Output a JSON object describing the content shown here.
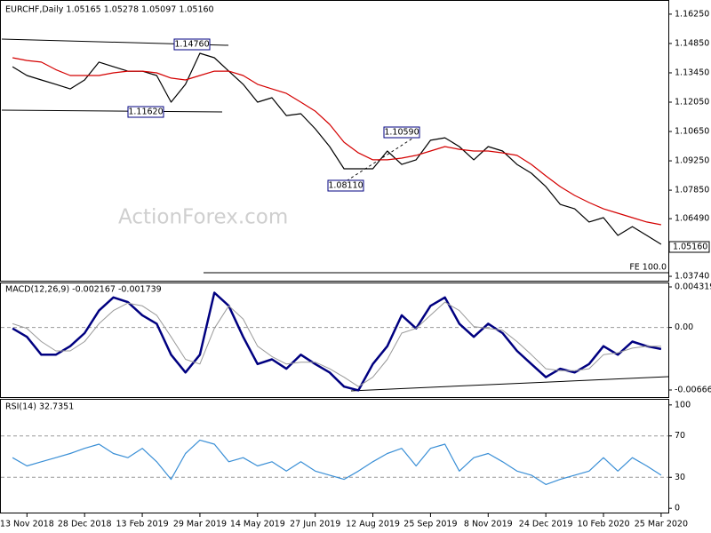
{
  "chart_data": [
    {
      "type": "line",
      "title": "EURCHF,Daily  1.05165 1.05278 1.05097 1.05160",
      "watermark": "ActionForex.com",
      "annotations": [
        "1.14760",
        "1.11620",
        "1.10590",
        "1.08110",
        "FE 100.0"
      ],
      "last_label": "1.05160",
      "categories": [
        null,
        "13 Nov 2018",
        null,
        null,
        null,
        "28 Dec 2018",
        null,
        null,
        null,
        "13 Feb 2019",
        null,
        null,
        null,
        "29 Mar 2019",
        null,
        null,
        null,
        "14 May 2019",
        null,
        null,
        null,
        "27 Jun 2019",
        null,
        null,
        null,
        "12 Aug 2019",
        null,
        null,
        null,
        "25 Sep 2019",
        null,
        null,
        null,
        "8 Nov 2019",
        null,
        null,
        null,
        "24 Dec 2019",
        null,
        null,
        null,
        "10 Feb 2020",
        null,
        null,
        null,
        "25 Mar 2020"
      ],
      "series": [
        {
          "color": "#000000",
          "values": [
            1.1374,
            1.1332,
            1.1311,
            1.129,
            1.1268,
            1.1311,
            1.1396,
            1.1374,
            1.1353,
            1.1353,
            1.1332,
            1.1205,
            1.129,
            1.1438,
            1.1417,
            1.1353,
            1.129,
            1.1205,
            1.1226,
            1.1141,
            1.115,
            1.1078,
            1.0993,
            1.0887,
            1.0887,
            1.0887,
            1.0972,
            1.0908,
            1.093,
            1.1023,
            1.1035,
            1.0993,
            1.093,
            1.0993,
            1.0972,
            1.0908,
            1.0866,
            1.0802,
            1.0717,
            1.0696,
            1.0633,
            1.0654,
            1.0569,
            1.0611,
            1.0569,
            1.0527
          ]
        },
        {
          "color": "#d40000",
          "values": [
            1.1417,
            1.1404,
            1.1396,
            1.136,
            1.1332,
            1.1332,
            1.1332,
            1.1345,
            1.1353,
            1.1353,
            1.1345,
            1.132,
            1.1311,
            1.1332,
            1.1353,
            1.1353,
            1.1332,
            1.129,
            1.1268,
            1.1247,
            1.1205,
            1.1162,
            1.1099,
            1.1014,
            1.0963,
            1.093,
            1.093,
            1.0938,
            1.0951,
            1.0972,
            1.0993,
            1.098,
            1.0972,
            1.0972,
            1.0963,
            1.0951,
            1.0908,
            1.0853,
            1.0802,
            1.076,
            1.0726,
            1.0696,
            1.0675,
            1.0654,
            1.0633,
            1.062
          ]
        }
      ],
      "ylim": [
        1.0353,
        1.1684
      ],
      "yticks": [
        {
          "value": 1.1625,
          "label": "1.16250"
        },
        {
          "value": 1.1485,
          "label": "1.14850"
        },
        {
          "value": 1.1345,
          "label": "1.13450"
        },
        {
          "value": 1.1205,
          "label": "1.12050"
        },
        {
          "value": 1.1065,
          "label": "1.10650"
        },
        {
          "value": 1.0925,
          "label": "1.09250"
        },
        {
          "value": 1.0785,
          "label": "1.07850"
        },
        {
          "value": 1.0649,
          "label": "1.06490"
        },
        {
          "value": 1.0374,
          "label": "1.03740"
        }
      ]
    },
    {
      "type": "line",
      "title": "MACD(12,26,9) -0.002167 -0.001739",
      "series": [
        {
          "color": "#000080",
          "values": [
            -0.0001,
            -0.001,
            -0.0029,
            -0.0029,
            -0.002,
            -0.0006,
            0.0018,
            0.0032,
            0.0027,
            0.0013,
            0.0004,
            -0.0029,
            -0.0048,
            -0.0029,
            0.0037,
            0.0023,
            -0.001,
            -0.0039,
            -0.0034,
            -0.0044,
            -0.0029,
            -0.0039,
            -0.0048,
            -0.0063,
            -0.0067,
            -0.0039,
            -0.002,
            0.0013,
            -0.0001,
            0.0023,
            0.0032,
            0.0004,
            -0.001,
            0.0004,
            -0.0006,
            -0.0025,
            -0.0039,
            -0.0053,
            -0.0044,
            -0.0048,
            -0.0039,
            -0.002,
            -0.0029,
            -0.0015,
            -0.002,
            -0.0023
          ]
        },
        {
          "color": "#999999",
          "values": [
            0.0004,
            -0.0001,
            -0.0015,
            -0.0025,
            -0.0025,
            -0.0015,
            0.0004,
            0.0018,
            0.0026,
            0.0023,
            0.0013,
            -0.001,
            -0.0034,
            -0.0039,
            -0.0001,
            0.0023,
            0.0009,
            -0.002,
            -0.0031,
            -0.0039,
            -0.0037,
            -0.0037,
            -0.0044,
            -0.0053,
            -0.0063,
            -0.0053,
            -0.0034,
            -0.0006,
            -0.0001,
            0.0013,
            0.0027,
            0.0018,
            0.0001,
            -0.0001,
            -0.0003,
            -0.0015,
            -0.0029,
            -0.0044,
            -0.0046,
            -0.0046,
            -0.0044,
            -0.0029,
            -0.0027,
            -0.0022,
            -0.002,
            -0.002
          ]
        }
      ],
      "ylim": [
        -0.007515,
        0.004792
      ],
      "yticks": [
        0.004319,
        {
          "value": 0,
          "label": "0.00"
        },
        -0.006663
      ],
      "levels": [
        0
      ]
    },
    {
      "type": "line",
      "title": "RSI(14) 32.7351",
      "series": [
        {
          "color": "#3a8fd6",
          "values": [
            49,
            41,
            45,
            49,
            53,
            58,
            62,
            53,
            49,
            58,
            45,
            28,
            53,
            66,
            62,
            45,
            49,
            41,
            45,
            36,
            45,
            36,
            32,
            28,
            36,
            45,
            53,
            58,
            41,
            58,
            62,
            36,
            49,
            53,
            45,
            36,
            32,
            23,
            28,
            32,
            36,
            49,
            36,
            49,
            41,
            32
          ]
        }
      ],
      "ylim": [
        -5,
        105
      ],
      "yticks": [
        0,
        30,
        70,
        100
      ],
      "levels": [
        70,
        30
      ]
    }
  ]
}
